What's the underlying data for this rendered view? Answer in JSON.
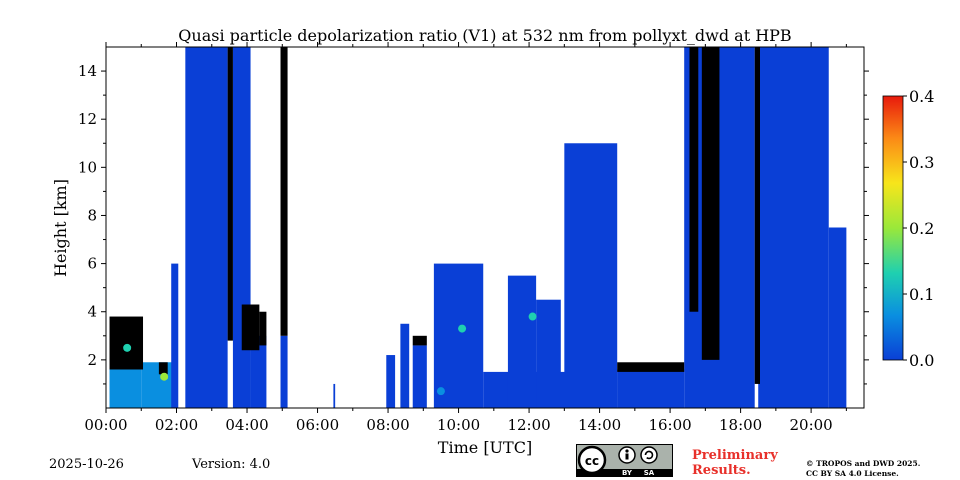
{
  "chart_data": {
    "type": "heatmap",
    "title": "Quasi particle depolarization ratio (V1) at 532 nm from pollyxt_dwd at HPB",
    "xlabel": "Time [UTC]",
    "ylabel": "Height [km]",
    "x_unit": "hours UTC",
    "xlim": [
      0,
      21.5
    ],
    "ylim": [
      0,
      15
    ],
    "x_ticks": [
      {
        "value": 0,
        "label": "00:00"
      },
      {
        "value": 2,
        "label": "02:00"
      },
      {
        "value": 4,
        "label": "04:00"
      },
      {
        "value": 6,
        "label": "06:00"
      },
      {
        "value": 8,
        "label": "08:00"
      },
      {
        "value": 10,
        "label": "10:00"
      },
      {
        "value": 12,
        "label": "12:00"
      },
      {
        "value": 14,
        "label": "14:00"
      },
      {
        "value": 16,
        "label": "16:00"
      },
      {
        "value": 18,
        "label": "18:00"
      },
      {
        "value": 20,
        "label": "20:00"
      }
    ],
    "y_ticks": [
      {
        "value": 2,
        "label": "2"
      },
      {
        "value": 4,
        "label": "4"
      },
      {
        "value": 6,
        "label": "6"
      },
      {
        "value": 8,
        "label": "8"
      },
      {
        "value": 10,
        "label": "10"
      },
      {
        "value": 12,
        "label": "12"
      },
      {
        "value": 14,
        "label": "14"
      }
    ],
    "colorbar": {
      "range": [
        0.0,
        0.4
      ],
      "ticks": [
        {
          "value": 0.0,
          "label": "0.0"
        },
        {
          "value": 0.1,
          "label": "0.1"
        },
        {
          "value": 0.2,
          "label": "0.2"
        },
        {
          "value": 0.3,
          "label": "0.3"
        },
        {
          "value": 0.4,
          "label": "0.4"
        }
      ],
      "colors": [
        "#0a3fd6",
        "#0a8fe0",
        "#1fd0b0",
        "#9ae83a",
        "#f7e51b",
        "#fb8a16",
        "#e81a0c"
      ]
    },
    "colors": {
      "low_depol": "#1a4fd8",
      "boundary_layer": "#2a60d8",
      "cloud_black": "#000000",
      "green": "#38c060",
      "cyan": "#20a8c8"
    },
    "regions": [
      {
        "x0": 0.1,
        "x1": 1.0,
        "y0": 0.0,
        "y1": 1.6,
        "value": 0.05
      },
      {
        "x0": 1.0,
        "x1": 2.0,
        "y0": 0.0,
        "y1": 1.9,
        "value": 0.05
      },
      {
        "x0": 1.85,
        "x1": 2.05,
        "y0": 0.0,
        "y1": 6.0,
        "value": 0.03
      },
      {
        "x0": 2.25,
        "x1": 3.45,
        "y0": 0.0,
        "y1": 15.0,
        "value": 0.02
      },
      {
        "x0": 3.6,
        "x1": 4.1,
        "y0": 0.0,
        "y1": 15.0,
        "value": 0.02
      },
      {
        "x0": 4.1,
        "x1": 4.55,
        "y0": 0.0,
        "y1": 3.0,
        "value": 0.03
      },
      {
        "x0": 4.95,
        "x1": 5.15,
        "y0": 0.0,
        "y1": 3.0,
        "value": 0.02
      },
      {
        "x0": 6.45,
        "x1": 6.5,
        "y0": 0.0,
        "y1": 1.0,
        "value": 0.02
      },
      {
        "x0": 7.95,
        "x1": 8.2,
        "y0": 0.0,
        "y1": 2.2,
        "value": 0.03
      },
      {
        "x0": 8.35,
        "x1": 8.6,
        "y0": 0.0,
        "y1": 3.5,
        "value": 0.03
      },
      {
        "x0": 8.7,
        "x1": 9.1,
        "y0": 0.0,
        "y1": 2.6,
        "value": 0.03
      },
      {
        "x0": 9.3,
        "x1": 10.7,
        "y0": 0.0,
        "y1": 6.0,
        "value": 0.02
      },
      {
        "x0": 10.7,
        "x1": 14.5,
        "y0": 0.0,
        "y1": 1.5,
        "value": 0.02
      },
      {
        "x0": 11.4,
        "x1": 12.2,
        "y0": 0.0,
        "y1": 5.5,
        "value": 0.02
      },
      {
        "x0": 12.2,
        "x1": 12.9,
        "y0": 0.0,
        "y1": 4.5,
        "value": 0.02
      },
      {
        "x0": 13.0,
        "x1": 14.5,
        "y0": 0.0,
        "y1": 11.0,
        "value": 0.02
      },
      {
        "x0": 14.5,
        "x1": 16.4,
        "y0": 0.0,
        "y1": 1.6,
        "value": 0.02
      },
      {
        "x0": 16.4,
        "x1": 18.4,
        "y0": 0.0,
        "y1": 15.0,
        "value": 0.02
      },
      {
        "x0": 18.5,
        "x1": 20.5,
        "y0": 0.0,
        "y1": 15.0,
        "value": 0.02
      },
      {
        "x0": 20.5,
        "x1": 21.0,
        "y0": 0.0,
        "y1": 7.5,
        "value": 0.02
      }
    ],
    "clouds": [
      {
        "x0": 0.1,
        "x1": 1.05,
        "y0": 1.6,
        "y1": 3.8
      },
      {
        "x0": 1.5,
        "x1": 1.75,
        "y0": 1.4,
        "y1": 1.9
      },
      {
        "x0": 3.45,
        "x1": 3.6,
        "y0": 2.8,
        "y1": 15.0
      },
      {
        "x0": 3.85,
        "x1": 4.35,
        "y0": 2.4,
        "y1": 4.3
      },
      {
        "x0": 4.35,
        "x1": 4.55,
        "y0": 2.6,
        "y1": 4.0
      },
      {
        "x0": 4.95,
        "x1": 5.15,
        "y0": 3.0,
        "y1": 15.0
      },
      {
        "x0": 14.5,
        "x1": 16.4,
        "y0": 1.5,
        "y1": 1.9
      },
      {
        "x0": 16.55,
        "x1": 16.8,
        "y0": 4.0,
        "y1": 15.0
      },
      {
        "x0": 16.9,
        "x1": 17.4,
        "y0": 2.0,
        "y1": 15.0
      },
      {
        "x0": 18.4,
        "x1": 18.55,
        "y0": 1.0,
        "y1": 15.0
      },
      {
        "x0": 8.7,
        "x1": 9.1,
        "y0": 2.6,
        "y1": 3.0
      }
    ],
    "aerosol_spots": [
      {
        "x": 0.6,
        "y": 2.5,
        "value": 0.15
      },
      {
        "x": 1.65,
        "y": 1.3,
        "value": 0.2
      },
      {
        "x": 10.1,
        "y": 3.3,
        "value": 0.1
      },
      {
        "x": 12.1,
        "y": 3.8,
        "value": 0.15
      },
      {
        "x": 9.5,
        "y": 0.7,
        "value": 0.08
      }
    ]
  },
  "footer": {
    "date": "2025-10-26",
    "version": "Version: 4.0",
    "license_badge": "cc-by-sa-icon",
    "license_badge_text": [
      "cc",
      "BY",
      "SA"
    ],
    "preliminary_line1": "Preliminary",
    "preliminary_line2": "Results.",
    "copyright_line1": "© TROPOS and DWD 2025.",
    "copyright_line2": "CC BY SA 4.0 License."
  }
}
